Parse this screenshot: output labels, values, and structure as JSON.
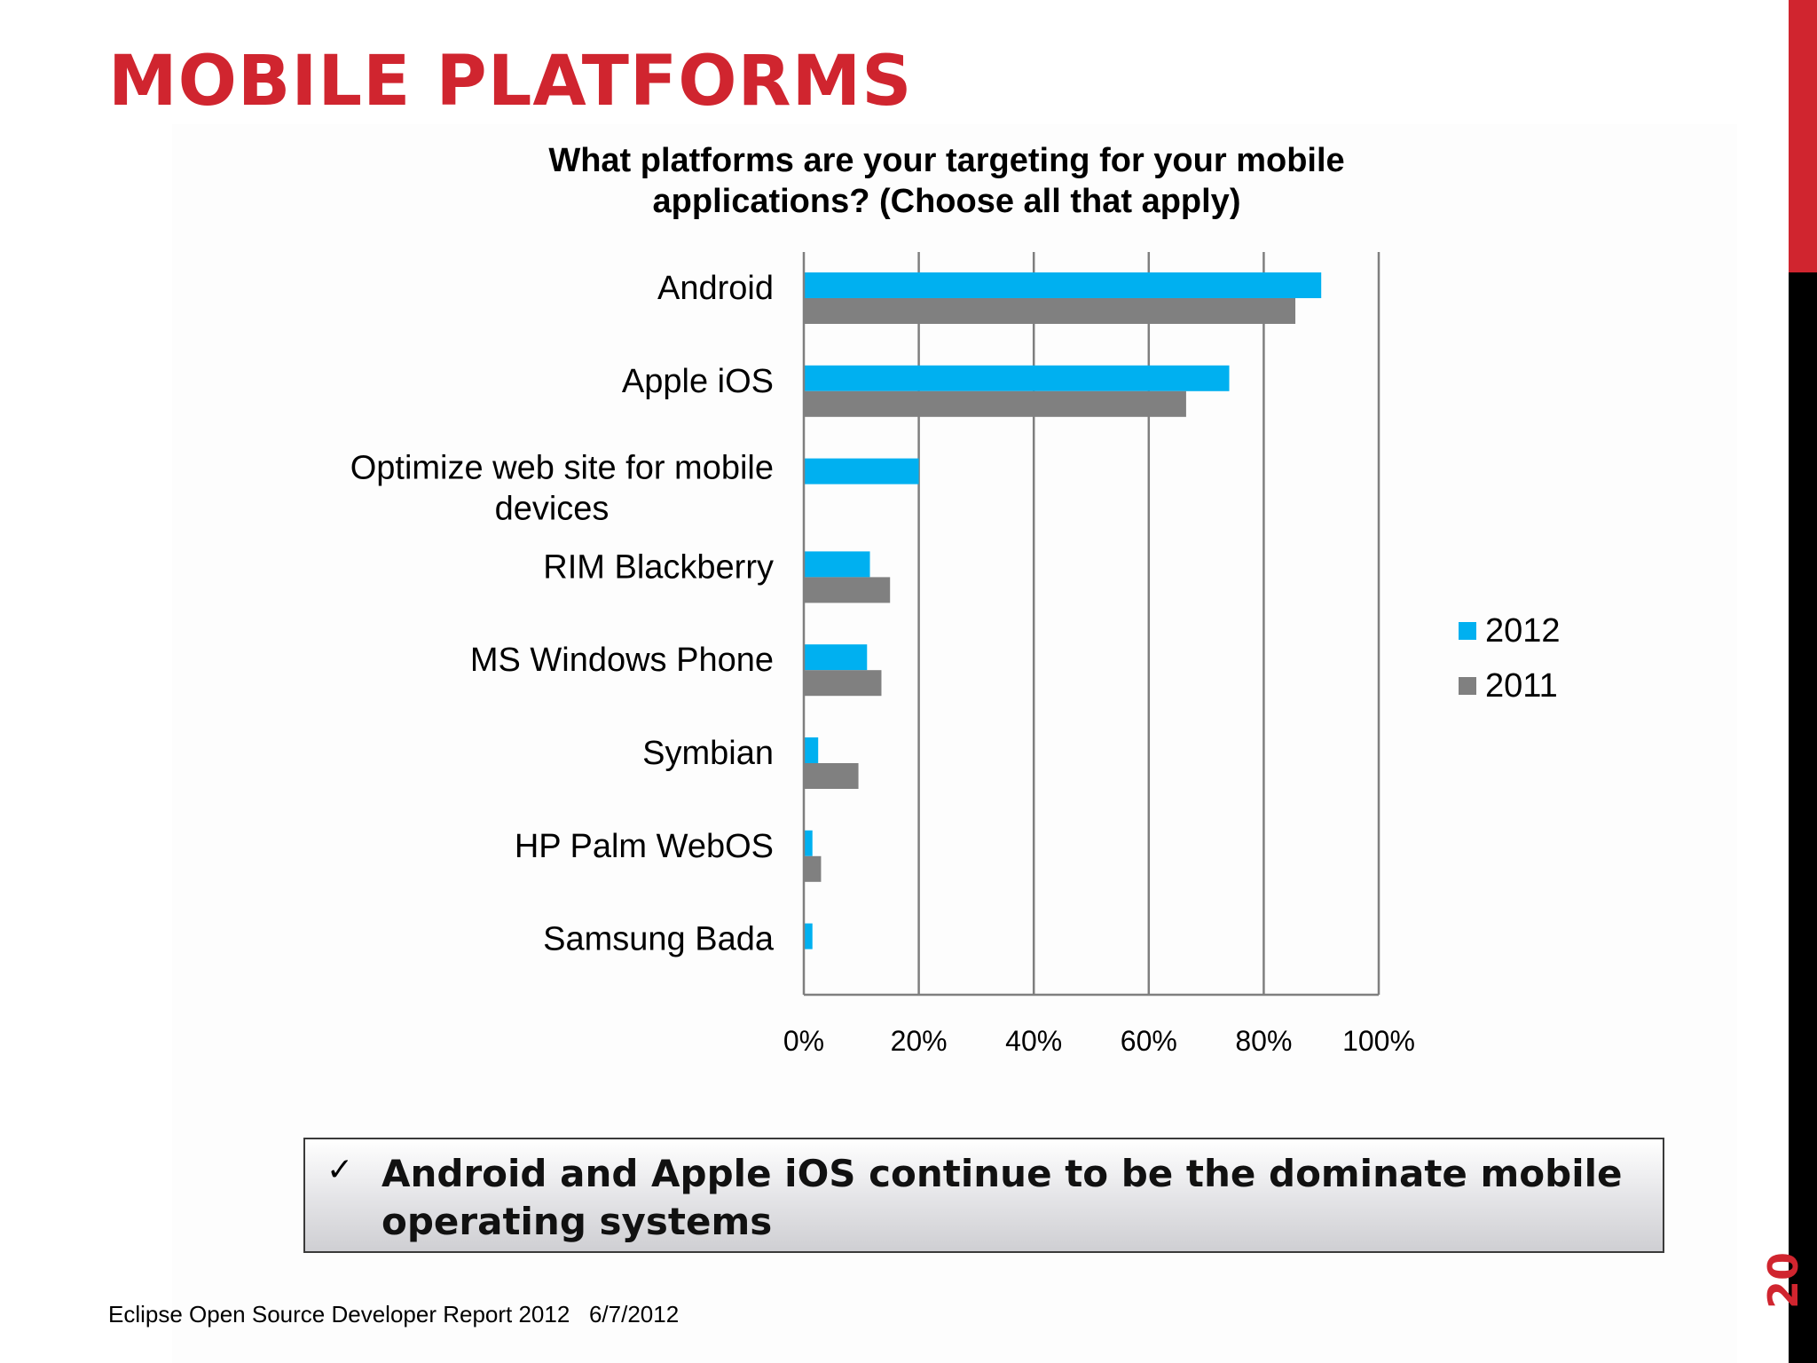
{
  "slide": {
    "title": "MOBILE PLATFORMS",
    "callout_text": "Android and Apple iOS continue to be the dominate mobile operating systems",
    "footer": "Eclipse Open Source Developer Report 2012   6/7/2012",
    "page_number": "20",
    "check_icon": "check-icon"
  },
  "colors": {
    "accent": "#d0252f",
    "series_2012": "#00b0f0",
    "series_2011": "#808080",
    "sidebar_dark": "#000000"
  },
  "chart_data": {
    "type": "bar",
    "orientation": "horizontal",
    "title": "What platforms are your targeting for your mobile applications?  (Choose all that apply)",
    "xlabel": "",
    "ylabel": "",
    "categories": [
      "Android",
      "Apple iOS",
      "Optimize web site for mobile devices",
      "RIM Blackberry",
      "MS Windows Phone",
      "Symbian",
      "HP Palm WebOS",
      "Samsung Bada"
    ],
    "series": [
      {
        "name": "2012",
        "values": [
          90,
          74,
          20,
          11.5,
          11,
          2.5,
          1.5,
          1.5
        ],
        "color": "#00b0f0"
      },
      {
        "name": "2011",
        "values": [
          85.5,
          66.5,
          0,
          15,
          13.5,
          9.5,
          3,
          0
        ],
        "color": "#808080"
      }
    ],
    "xlim": [
      0,
      100
    ],
    "xticks": [
      "0%",
      "20%",
      "40%",
      "60%",
      "80%",
      "100%"
    ],
    "grid": "vertical",
    "legend_position": "right"
  }
}
